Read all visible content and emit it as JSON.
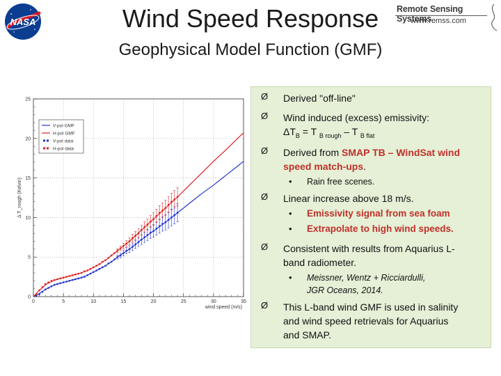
{
  "slide": {
    "title": "Wind Speed Response",
    "subtitle": "Geophysical Model Function (GMF)"
  },
  "logos": {
    "nasa": "NASA",
    "rss_name": "Remote Sensing Systems",
    "rss_url": "www.remss.com"
  },
  "bullets": {
    "b1": "Derived \"off-line\"",
    "b2_line1": "Wind induced (excess) emissivity:",
    "b2_eq_delta": "ΔT",
    "b2_eq_B1": "B",
    "b2_eq_mid": " = T ",
    "b2_eq_rough": "B rough",
    "b2_eq_minus": " – T ",
    "b2_eq_flat": "B flat",
    "b3_prefix": "Derived from ",
    "b3_red1": "SMAP TB – Wind",
    "b3_red1b": "Sat wind",
    "b3_red2": "speed match-ups",
    "b3_suffix": ".",
    "b3_sub": "Rain free scenes.",
    "b4": "Linear increase above 18 m/s.",
    "b4_sub1": "Emissivity signal from sea foam",
    "b4_sub2": "Extrapolate to high wind speeds.",
    "b5_line1": "Consistent with results from Aquarius L-",
    "b5_line2": "band radiometer.",
    "b5_sub_line1": "Meissner, Wentz + Ricciardulli,",
    "b5_sub_line2": "JGR Oceans, 2014.",
    "b6_line1": "This L-band wind GMF is used in salinity",
    "b6_line2": "and wind speed retrievals for Aquarius",
    "b6_line3": "and SMAP.",
    "arrow_glyph": "Ø",
    "dot_glyph": "•"
  },
  "colors": {
    "vpol": "#2233cc",
    "hpol": "#dd2222",
    "textbox_bg": "#e5f0d6",
    "highlight_red": "#c0302a"
  },
  "chart_data": {
    "type": "line",
    "xlabel": "wind speed (m/s)",
    "ylabel": "Δ T_rough (Kelvin)",
    "xlim": [
      0,
      35
    ],
    "ylim": [
      0,
      25
    ],
    "xticks": [
      0,
      5,
      10,
      15,
      20,
      25,
      30,
      35
    ],
    "yticks": [
      0,
      5,
      10,
      15,
      20,
      25
    ],
    "legend_position": "top-left",
    "series": [
      {
        "name": "V-pol GMF",
        "style": "line",
        "color": "#2233cc",
        "x": [
          0,
          1,
          2,
          3,
          4,
          5,
          6,
          7,
          8,
          9,
          10,
          11,
          12,
          13,
          14,
          15,
          16,
          17,
          18,
          20,
          22,
          24,
          26,
          28,
          30,
          32,
          34,
          35
        ],
        "y": [
          0,
          0.4,
          0.9,
          1.3,
          1.6,
          1.8,
          2.0,
          2.2,
          2.4,
          2.7,
          3.1,
          3.5,
          3.9,
          4.4,
          5.0,
          5.5,
          6.0,
          6.6,
          7.2,
          8.3,
          9.4,
          10.6,
          11.8,
          13.0,
          14.1,
          15.3,
          16.5,
          17.1
        ]
      },
      {
        "name": "H-pol GMF",
        "style": "line",
        "color": "#dd2222",
        "x": [
          0,
          1,
          2,
          3,
          4,
          5,
          6,
          7,
          8,
          9,
          10,
          11,
          12,
          13,
          14,
          15,
          16,
          17,
          18,
          20,
          22,
          24,
          26,
          28,
          30,
          32,
          34,
          35
        ],
        "y": [
          0,
          0.8,
          1.5,
          1.9,
          2.2,
          2.4,
          2.6,
          2.8,
          3.0,
          3.3,
          3.7,
          4.1,
          4.6,
          5.2,
          5.8,
          6.4,
          7.0,
          7.7,
          8.4,
          9.8,
          11.2,
          12.6,
          14.1,
          15.6,
          17.1,
          18.5,
          20.0,
          20.7
        ]
      },
      {
        "name": "V-pol data",
        "style": "points",
        "color": "#2233cc",
        "x": [
          0.5,
          1,
          1.5,
          2,
          2.5,
          3,
          3.5,
          4,
          4.5,
          5,
          5.5,
          6,
          6.5,
          7,
          7.5,
          8,
          8.5,
          9,
          9.5,
          10,
          10.5,
          11,
          11.5,
          12,
          12.5,
          13,
          13.5,
          14,
          14.5,
          15,
          15.5,
          16,
          16.5,
          17,
          17.5,
          18,
          18.5,
          19,
          19.5,
          20,
          20.5,
          21,
          21.5,
          22,
          22.5,
          23,
          23.5,
          24
        ],
        "y": [
          0.1,
          0.3,
          0.6,
          0.9,
          1.1,
          1.3,
          1.5,
          1.6,
          1.7,
          1.8,
          1.9,
          2.0,
          2.1,
          2.2,
          2.3,
          2.4,
          2.5,
          2.7,
          2.9,
          3.1,
          3.3,
          3.5,
          3.7,
          3.9,
          4.2,
          4.4,
          4.7,
          5.0,
          5.2,
          5.5,
          5.8,
          6.0,
          6.3,
          6.6,
          6.9,
          7.2,
          7.5,
          7.8,
          8.1,
          8.3,
          8.6,
          8.9,
          9.2,
          9.4,
          9.7,
          10.0,
          10.3,
          10.6
        ],
        "error_from_x": 14
      },
      {
        "name": "H-pol data",
        "style": "points",
        "color": "#dd2222",
        "x": [
          0.5,
          1,
          1.5,
          2,
          2.5,
          3,
          3.5,
          4,
          4.5,
          5,
          5.5,
          6,
          6.5,
          7,
          7.5,
          8,
          8.5,
          9,
          9.5,
          10,
          10.5,
          11,
          11.5,
          12,
          12.5,
          13,
          13.5,
          14,
          14.5,
          15,
          15.5,
          16,
          16.5,
          17,
          17.5,
          18,
          18.5,
          19,
          19.5,
          20,
          20.5,
          21,
          21.5,
          22,
          22.5,
          23,
          23.5,
          24
        ],
        "y": [
          0.3,
          0.8,
          1.2,
          1.6,
          1.8,
          2.0,
          2.1,
          2.2,
          2.3,
          2.4,
          2.5,
          2.6,
          2.7,
          2.8,
          2.9,
          3.0,
          3.2,
          3.3,
          3.5,
          3.7,
          3.9,
          4.1,
          4.4,
          4.6,
          4.9,
          5.2,
          5.5,
          5.8,
          6.1,
          6.4,
          6.7,
          7.0,
          7.4,
          7.7,
          8.0,
          8.4,
          8.8,
          9.1,
          9.5,
          9.8,
          10.2,
          10.6,
          10.9,
          11.2,
          11.6,
          12.0,
          12.3,
          12.6
        ],
        "error_from_x": 14
      }
    ]
  }
}
